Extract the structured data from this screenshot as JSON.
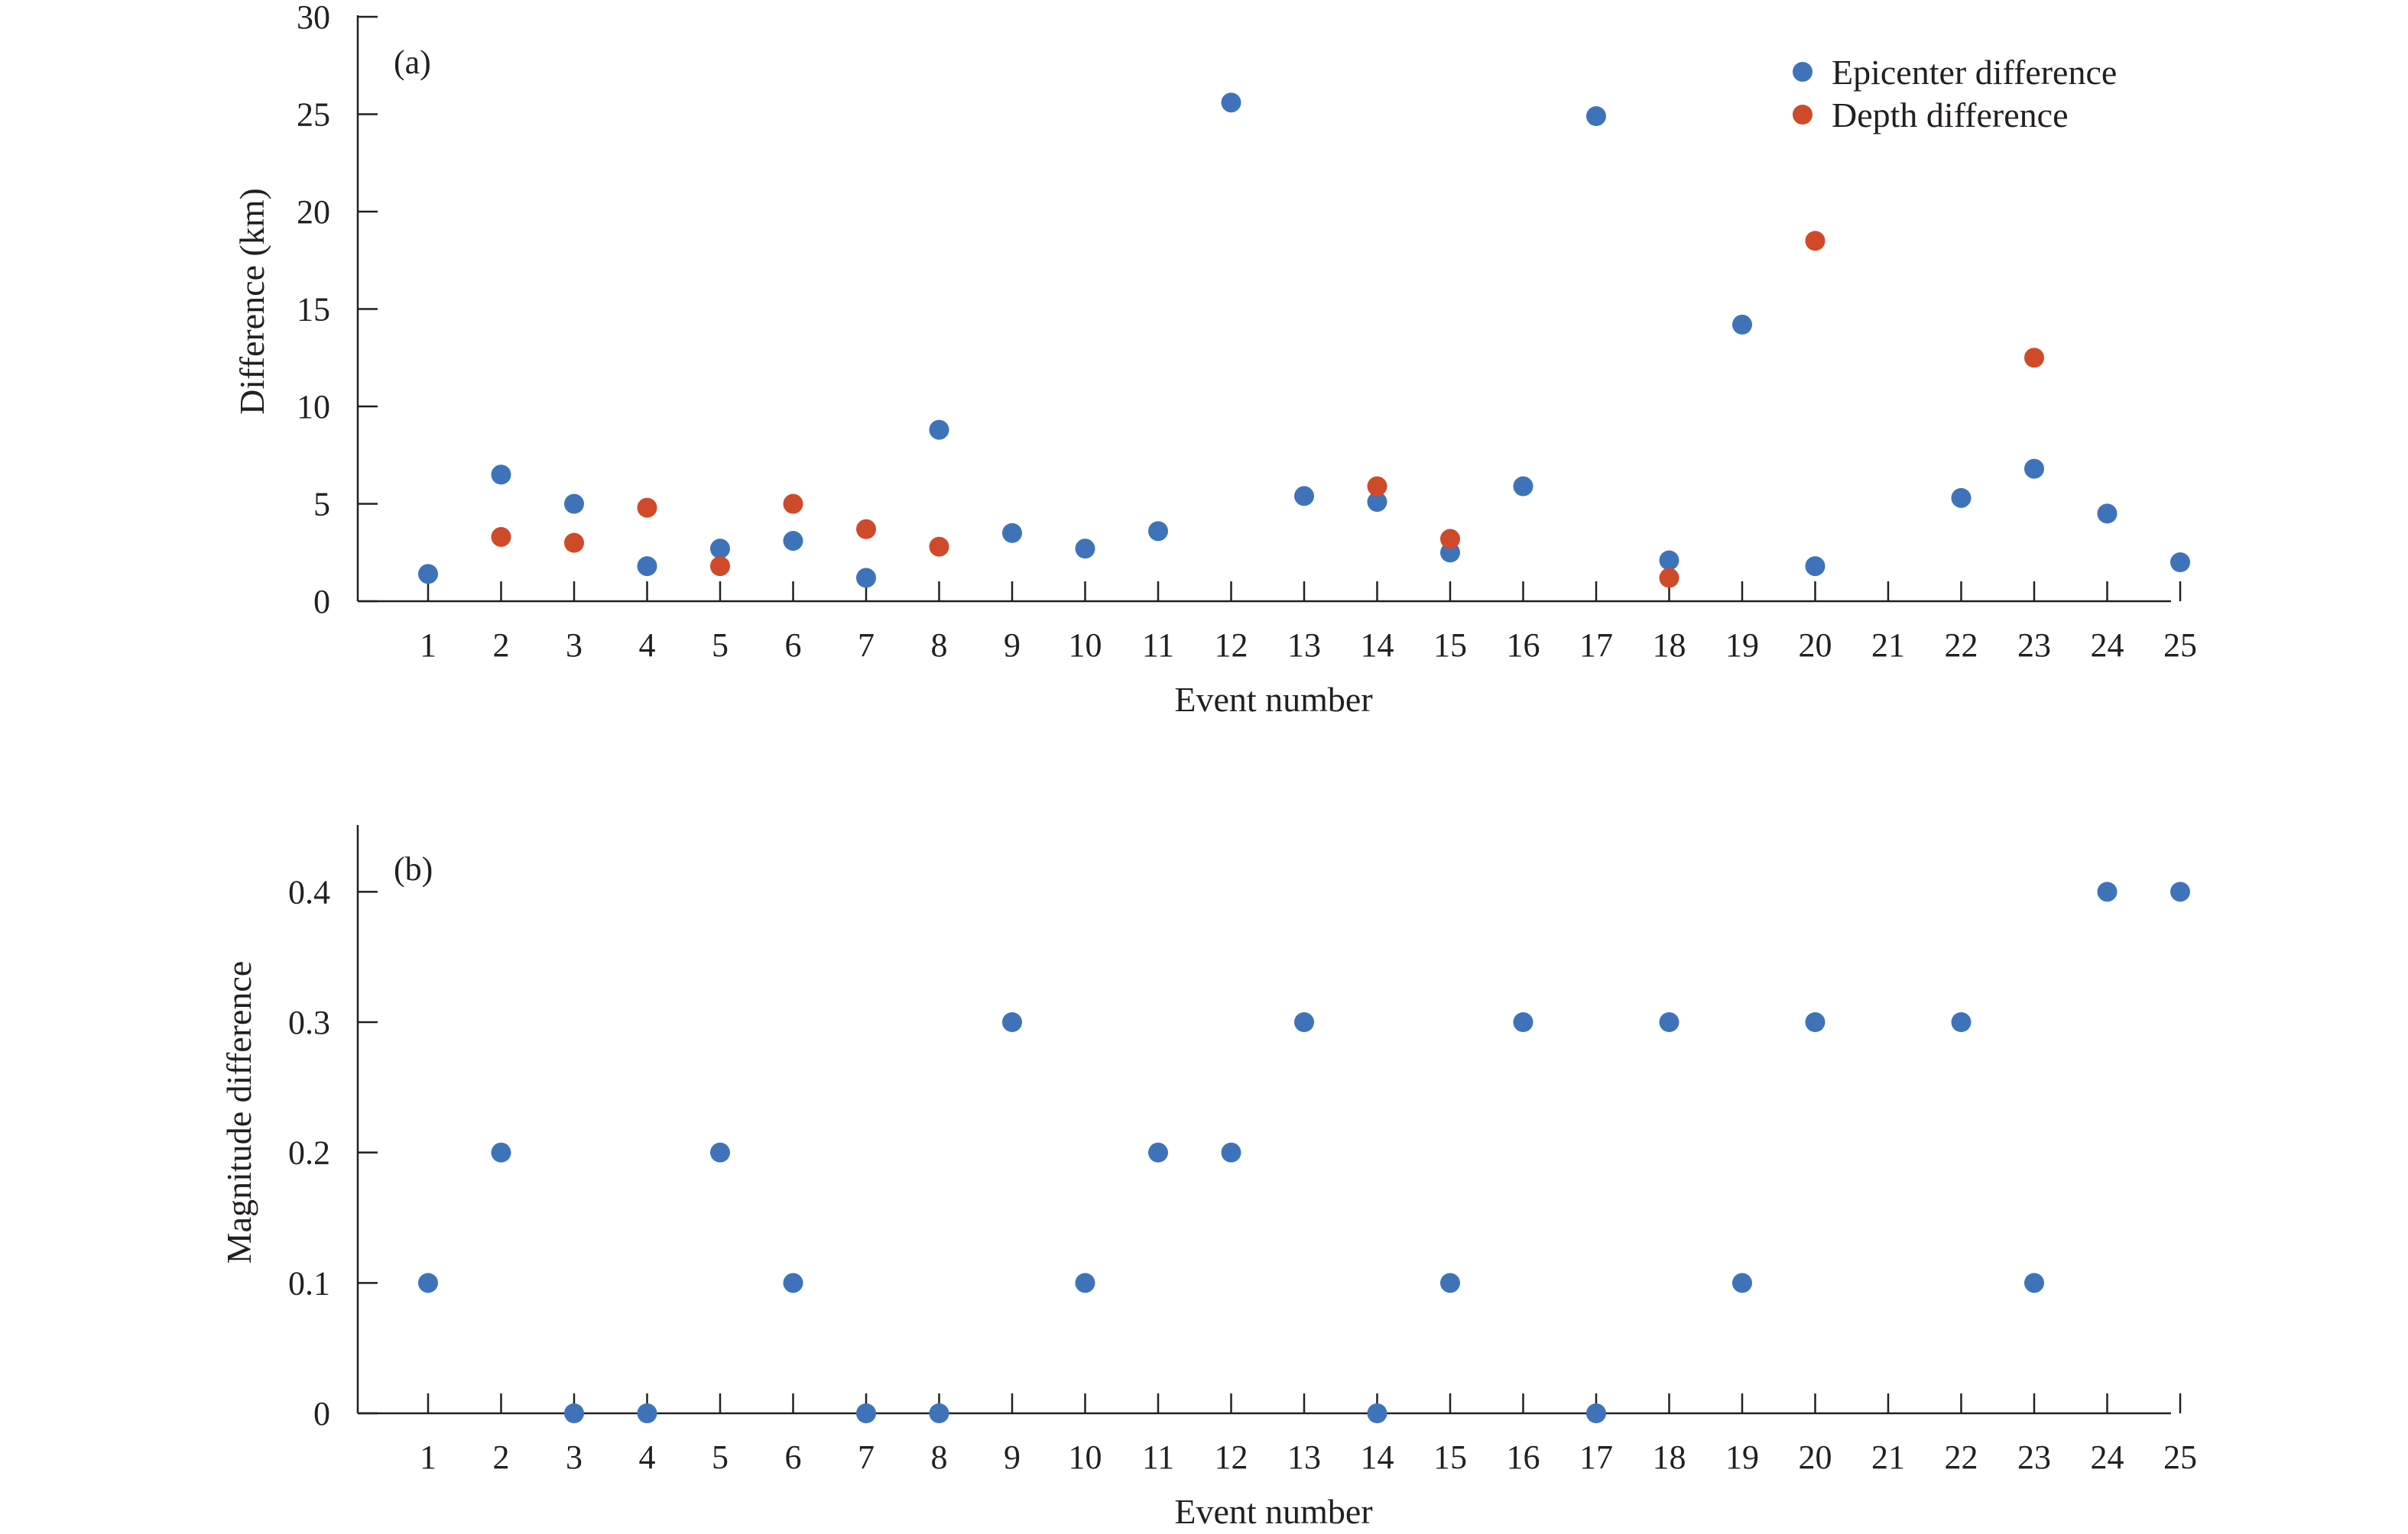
{
  "chart_data": [
    {
      "type": "scatter",
      "panel_label": "(a)",
      "xlabel": "Event number",
      "ylabel": "Difference (km)",
      "x": [
        1,
        2,
        3,
        4,
        5,
        6,
        7,
        8,
        9,
        10,
        11,
        12,
        13,
        14,
        15,
        16,
        17,
        18,
        19,
        20,
        21,
        22,
        23,
        24,
        25
      ],
      "xlim": [
        0,
        25
      ],
      "ylim": [
        0,
        30
      ],
      "yticks": [
        0,
        5,
        10,
        15,
        20,
        25,
        30
      ],
      "legend_position": "top-right",
      "series": [
        {
          "name": "Epicenter difference",
          "color": "#3e73b9",
          "points": [
            [
              1,
              1.4
            ],
            [
              2,
              6.5
            ],
            [
              3,
              5.0
            ],
            [
              4,
              1.8
            ],
            [
              5,
              2.7
            ],
            [
              6,
              3.1
            ],
            [
              7,
              1.2
            ],
            [
              8,
              8.8
            ],
            [
              9,
              3.5
            ],
            [
              10,
              2.7
            ],
            [
              11,
              3.6
            ],
            [
              12,
              25.6
            ],
            [
              13,
              5.4
            ],
            [
              14,
              5.1
            ],
            [
              15,
              2.5
            ],
            [
              16,
              5.9
            ],
            [
              17,
              24.9
            ],
            [
              18,
              2.1
            ],
            [
              19,
              14.2
            ],
            [
              20,
              1.8
            ],
            [
              22,
              5.3
            ],
            [
              23,
              6.8
            ],
            [
              24,
              4.5
            ],
            [
              25,
              2.0
            ]
          ]
        },
        {
          "name": "Depth difference",
          "color": "#cf4a29",
          "points": [
            [
              2,
              3.3
            ],
            [
              3,
              3.0
            ],
            [
              4,
              4.8
            ],
            [
              5,
              1.8
            ],
            [
              6,
              5.0
            ],
            [
              7,
              3.7
            ],
            [
              8,
              2.8
            ],
            [
              14,
              5.9
            ],
            [
              15,
              3.2
            ],
            [
              18,
              1.2
            ],
            [
              20,
              18.5
            ],
            [
              23,
              12.5
            ]
          ]
        }
      ]
    },
    {
      "type": "scatter",
      "panel_label": "(b)",
      "xlabel": "Event number",
      "ylabel": "Magnitude difference",
      "x": [
        1,
        2,
        3,
        4,
        5,
        6,
        7,
        8,
        9,
        10,
        11,
        12,
        13,
        14,
        15,
        16,
        17,
        18,
        19,
        20,
        21,
        22,
        23,
        24,
        25
      ],
      "xlim": [
        0,
        25
      ],
      "ylim": [
        0,
        0.45
      ],
      "yticks": [
        "0",
        "0.1",
        "0.2",
        "0.3",
        "0.4"
      ],
      "series": [
        {
          "color": "#3e73b9",
          "points": [
            [
              1,
              0.1
            ],
            [
              2,
              0.2
            ],
            [
              3,
              0
            ],
            [
              4,
              0
            ],
            [
              5,
              0.2
            ],
            [
              6,
              0.1
            ],
            [
              7,
              0
            ],
            [
              8,
              0
            ],
            [
              9,
              0.3
            ],
            [
              10,
              0.1
            ],
            [
              11,
              0.2
            ],
            [
              12,
              0.2
            ],
            [
              13,
              0.3
            ],
            [
              14,
              0
            ],
            [
              15,
              0.1
            ],
            [
              16,
              0.3
            ],
            [
              17,
              0
            ],
            [
              18,
              0.3
            ],
            [
              19,
              0.1
            ],
            [
              20,
              0.3
            ],
            [
              22,
              0.3
            ],
            [
              23,
              0.1
            ],
            [
              24,
              0.4
            ],
            [
              25,
              0.4
            ]
          ]
        }
      ]
    }
  ]
}
